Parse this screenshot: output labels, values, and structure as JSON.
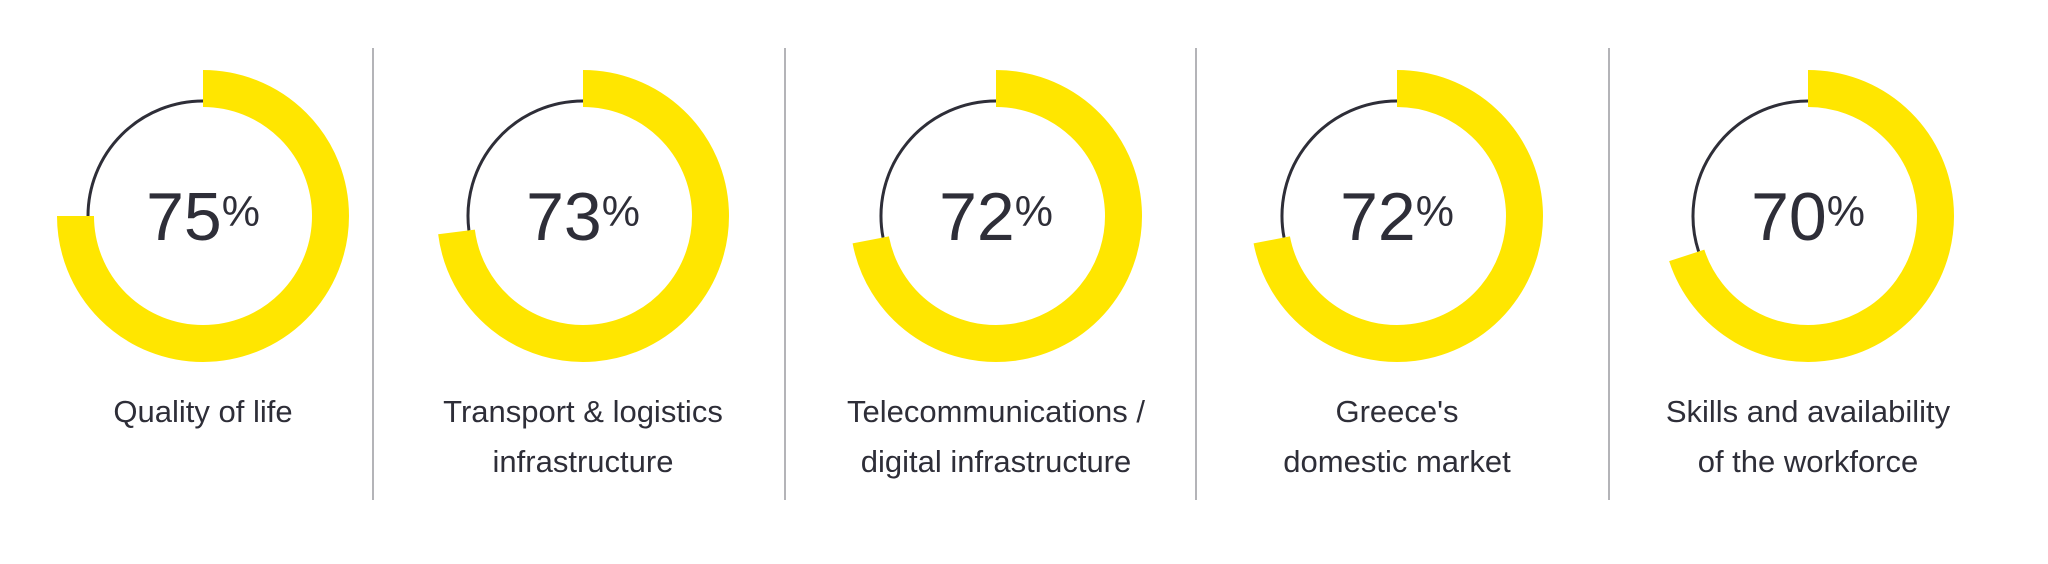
{
  "chart_data": {
    "type": "donut",
    "max": 100,
    "colors": {
      "filled": "#ffe600",
      "remainder": "#2e2e38",
      "divider": "#9b9ba0",
      "text": "#2e2e38"
    },
    "items": [
      {
        "value": 75,
        "label": "Quality of life",
        "label_lines": [
          "Quality of life"
        ]
      },
      {
        "value": 73,
        "label": "Transport & logistics infrastructure",
        "label_lines": [
          "Transport & logistics",
          "infrastructure"
        ]
      },
      {
        "value": 72,
        "label": "Telecommunications / digital infrastructure",
        "label_lines": [
          "Telecommunications /",
          "digital infrastructure"
        ]
      },
      {
        "value": 72,
        "label": "Greece's domestic market",
        "label_lines": [
          "Greece's",
          "domestic market"
        ]
      },
      {
        "value": 70,
        "label": "Skills and availability of the workforce",
        "label_lines": [
          "Skills and availability",
          "of the workforce"
        ]
      }
    ],
    "value_suffix": "%"
  }
}
